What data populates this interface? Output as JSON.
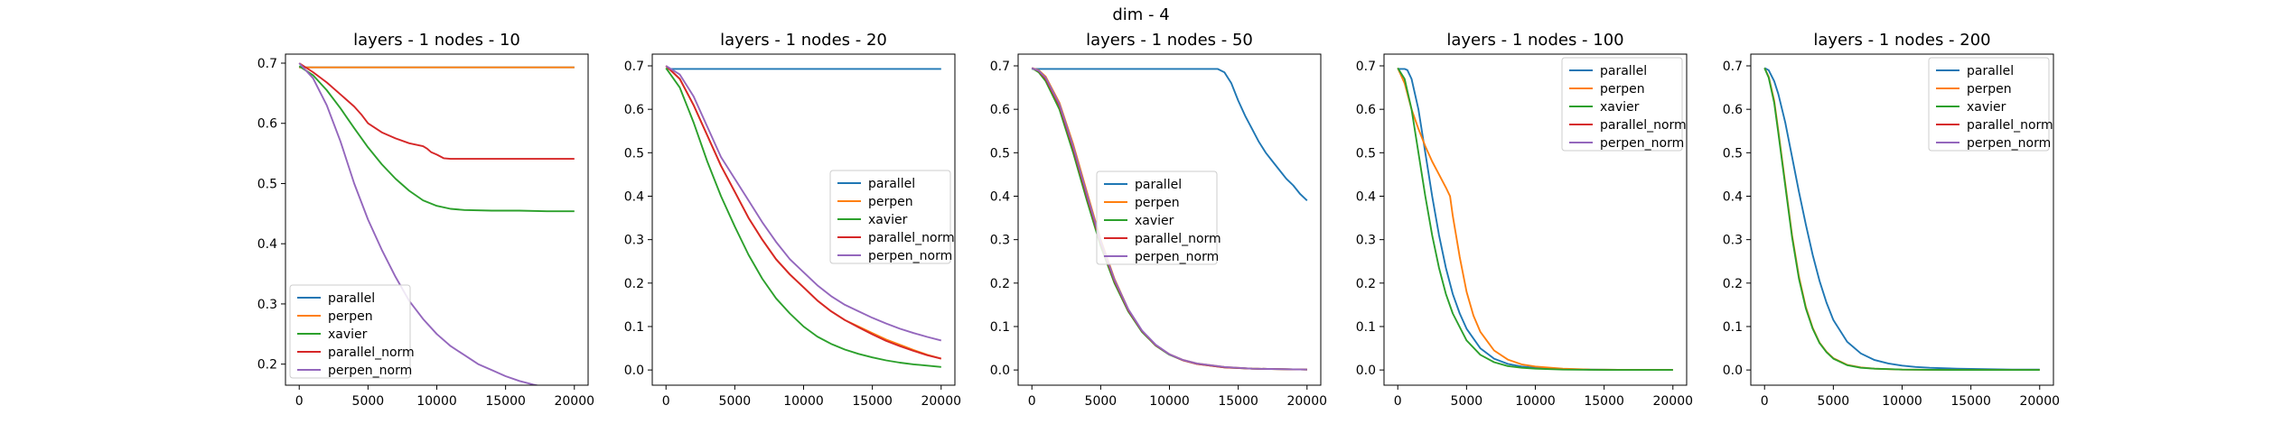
{
  "figure_title": "dim - 4",
  "colors": {
    "parallel": "#1f77b4",
    "perpen": "#ff7f0e",
    "xavier": "#2ca02c",
    "parallel_norm": "#d62728",
    "perpen_norm": "#9467bd"
  },
  "chart_data": [
    {
      "type": "line",
      "title": "layers - 1 nodes - 10",
      "xlabel": "",
      "ylabel": "",
      "xlim": [
        -1000,
        21000
      ],
      "ylim": [
        0.165,
        0.715
      ],
      "xticks": [
        0,
        5000,
        10000,
        15000,
        20000
      ],
      "yticks": [
        0.2,
        0.3,
        0.4,
        0.5,
        0.6,
        0.7
      ],
      "legend_position": "lower-left",
      "grid": false,
      "series": [
        {
          "name": "parallel",
          "x": [
            0,
            20000
          ],
          "y": [
            0.693,
            0.693
          ]
        },
        {
          "name": "perpen",
          "x": [
            0,
            20000
          ],
          "y": [
            0.693,
            0.693
          ]
        },
        {
          "name": "xavier",
          "x": [
            0,
            1000,
            2000,
            3000,
            4000,
            5000,
            6000,
            7000,
            8000,
            9000,
            10000,
            11000,
            12000,
            14000,
            16000,
            18000,
            20000
          ],
          "y": [
            0.695,
            0.68,
            0.655,
            0.625,
            0.592,
            0.56,
            0.532,
            0.508,
            0.488,
            0.472,
            0.463,
            0.458,
            0.456,
            0.455,
            0.455,
            0.454,
            0.454
          ]
        },
        {
          "name": "parallel_norm",
          "x": [
            0,
            1000,
            2000,
            3000,
            4000,
            4500,
            5000,
            6000,
            7000,
            8000,
            9000,
            9300,
            9600,
            10000,
            10500,
            11000,
            12000,
            14000,
            16000,
            18000,
            20000
          ],
          "y": [
            0.7,
            0.685,
            0.668,
            0.648,
            0.628,
            0.615,
            0.6,
            0.585,
            0.575,
            0.567,
            0.562,
            0.558,
            0.552,
            0.548,
            0.542,
            0.541,
            0.541,
            0.541,
            0.541,
            0.541,
            0.541
          ]
        },
        {
          "name": "perpen_norm",
          "x": [
            0,
            1000,
            2000,
            3000,
            4000,
            5000,
            6000,
            7000,
            8000,
            9000,
            10000,
            11000,
            12000,
            13000,
            14000,
            15000,
            16000,
            17000,
            18000,
            19000,
            20000
          ],
          "y": [
            0.7,
            0.675,
            0.63,
            0.57,
            0.5,
            0.44,
            0.39,
            0.345,
            0.305,
            0.275,
            0.25,
            0.23,
            0.215,
            0.2,
            0.19,
            0.18,
            0.172,
            0.166,
            0.161,
            0.156,
            0.15
          ]
        }
      ]
    },
    {
      "type": "line",
      "title": "layers - 1 nodes - 20",
      "xlabel": "",
      "ylabel": "",
      "xlim": [
        -1000,
        21000
      ],
      "ylim": [
        -0.035,
        0.727
      ],
      "xticks": [
        0,
        5000,
        10000,
        15000,
        20000
      ],
      "yticks": [
        0.0,
        0.1,
        0.2,
        0.3,
        0.4,
        0.5,
        0.6,
        0.7
      ],
      "legend_position": "center-right",
      "grid": false,
      "series": [
        {
          "name": "parallel",
          "x": [
            0,
            20000
          ],
          "y": [
            0.693,
            0.693
          ]
        },
        {
          "name": "perpen",
          "x": [
            0,
            1000,
            2000,
            3000,
            4000,
            5000,
            6000,
            7000,
            8000,
            9000,
            10000,
            11000,
            12000,
            13000,
            14000,
            15000,
            16000,
            17000,
            18000,
            19000,
            20000
          ],
          "y": [
            0.7,
            0.67,
            0.61,
            0.54,
            0.47,
            0.41,
            0.35,
            0.3,
            0.255,
            0.22,
            0.19,
            0.16,
            0.135,
            0.115,
            0.1,
            0.085,
            0.07,
            0.058,
            0.046,
            0.035,
            0.026
          ]
        },
        {
          "name": "xavier",
          "x": [
            0,
            1000,
            2000,
            3000,
            4000,
            5000,
            6000,
            7000,
            8000,
            9000,
            10000,
            11000,
            12000,
            13000,
            14000,
            15000,
            16000,
            17000,
            18000,
            19000,
            20000
          ],
          "y": [
            0.695,
            0.65,
            0.57,
            0.48,
            0.4,
            0.33,
            0.265,
            0.21,
            0.165,
            0.13,
            0.1,
            0.077,
            0.06,
            0.047,
            0.037,
            0.029,
            0.022,
            0.017,
            0.013,
            0.01,
            0.007
          ]
        },
        {
          "name": "parallel_norm",
          "x": [
            0,
            1000,
            2000,
            3000,
            4000,
            5000,
            6000,
            7000,
            8000,
            9000,
            10000,
            11000,
            12000,
            13000,
            14000,
            15000,
            16000,
            17000,
            18000,
            19000,
            20000
          ],
          "y": [
            0.7,
            0.67,
            0.61,
            0.54,
            0.47,
            0.41,
            0.35,
            0.3,
            0.255,
            0.22,
            0.19,
            0.16,
            0.135,
            0.115,
            0.098,
            0.082,
            0.067,
            0.055,
            0.044,
            0.034,
            0.026
          ]
        },
        {
          "name": "perpen_norm",
          "x": [
            0,
            1000,
            2000,
            3000,
            4000,
            5000,
            6000,
            7000,
            8000,
            9000,
            10000,
            11000,
            12000,
            13000,
            14000,
            15000,
            16000,
            17000,
            18000,
            19000,
            20000
          ],
          "y": [
            0.7,
            0.68,
            0.63,
            0.56,
            0.49,
            0.44,
            0.39,
            0.34,
            0.295,
            0.255,
            0.225,
            0.195,
            0.17,
            0.15,
            0.135,
            0.12,
            0.107,
            0.095,
            0.085,
            0.076,
            0.068
          ]
        }
      ]
    },
    {
      "type": "line",
      "title": "layers - 1 nodes - 50",
      "xlabel": "",
      "ylabel": "",
      "xlim": [
        -1000,
        21000
      ],
      "ylim": [
        -0.035,
        0.727
      ],
      "xticks": [
        0,
        5000,
        10000,
        15000,
        20000
      ],
      "yticks": [
        0.0,
        0.1,
        0.2,
        0.3,
        0.4,
        0.5,
        0.6,
        0.7
      ],
      "legend_position": "center",
      "grid": false,
      "series": [
        {
          "name": "parallel",
          "x": [
            0,
            13500,
            14000,
            14500,
            15000,
            15500,
            16000,
            16500,
            17000,
            17500,
            18000,
            18500,
            19000,
            19500,
            20000
          ],
          "y": [
            0.693,
            0.693,
            0.685,
            0.66,
            0.62,
            0.585,
            0.555,
            0.525,
            0.5,
            0.48,
            0.46,
            0.44,
            0.425,
            0.405,
            0.39
          ]
        },
        {
          "name": "perpen",
          "x": [
            0,
            500,
            1000,
            2000,
            3000,
            4000,
            5000,
            6000,
            7000,
            8000,
            9000,
            10000,
            11000,
            12000,
            14000,
            16000,
            18000,
            20000
          ],
          "y": [
            0.695,
            0.69,
            0.675,
            0.615,
            0.52,
            0.41,
            0.3,
            0.21,
            0.14,
            0.09,
            0.057,
            0.036,
            0.023,
            0.015,
            0.007,
            0.003,
            0.002,
            0.001
          ]
        },
        {
          "name": "xavier",
          "x": [
            0,
            500,
            1000,
            2000,
            3000,
            4000,
            5000,
            6000,
            7000,
            8000,
            9000,
            10000,
            11000,
            12000,
            14000,
            16000,
            18000,
            20000
          ],
          "y": [
            0.695,
            0.685,
            0.665,
            0.6,
            0.5,
            0.39,
            0.285,
            0.2,
            0.135,
            0.088,
            0.056,
            0.035,
            0.022,
            0.014,
            0.006,
            0.003,
            0.002,
            0.001
          ]
        },
        {
          "name": "parallel_norm",
          "x": [
            0,
            500,
            1000,
            2000,
            3000,
            4000,
            5000,
            6000,
            7000,
            8000,
            9000,
            10000,
            11000,
            12000,
            14000,
            16000,
            18000,
            20000
          ],
          "y": [
            0.695,
            0.688,
            0.67,
            0.608,
            0.51,
            0.4,
            0.292,
            0.205,
            0.138,
            0.09,
            0.057,
            0.036,
            0.022,
            0.014,
            0.006,
            0.003,
            0.002,
            0.001
          ]
        },
        {
          "name": "perpen_norm",
          "x": [
            0,
            500,
            1000,
            2000,
            3000,
            4000,
            5000,
            6000,
            7000,
            8000,
            9000,
            10000,
            11000,
            12000,
            14000,
            16000,
            18000,
            20000
          ],
          "y": [
            0.695,
            0.689,
            0.673,
            0.612,
            0.515,
            0.405,
            0.296,
            0.208,
            0.14,
            0.091,
            0.058,
            0.036,
            0.023,
            0.015,
            0.007,
            0.003,
            0.002,
            0.001
          ]
        }
      ]
    },
    {
      "type": "line",
      "title": "layers - 1 nodes - 100",
      "xlabel": "",
      "ylabel": "",
      "xlim": [
        -1000,
        21000
      ],
      "ylim": [
        -0.035,
        0.727
      ],
      "xticks": [
        0,
        5000,
        10000,
        15000,
        20000
      ],
      "yticks": [
        0.0,
        0.1,
        0.2,
        0.3,
        0.4,
        0.5,
        0.6,
        0.7
      ],
      "legend_position": "upper-right",
      "grid": false,
      "series": [
        {
          "name": "parallel",
          "x": [
            0,
            500,
            700,
            1000,
            1500,
            2000,
            2500,
            3000,
            3500,
            4000,
            4500,
            5000,
            6000,
            7000,
            8000,
            9000,
            10000,
            12000,
            14000,
            16000,
            20000
          ],
          "y": [
            0.693,
            0.693,
            0.69,
            0.67,
            0.6,
            0.5,
            0.4,
            0.31,
            0.235,
            0.175,
            0.13,
            0.095,
            0.05,
            0.026,
            0.014,
            0.008,
            0.005,
            0.002,
            0.001,
            0.0005,
            0.0
          ]
        },
        {
          "name": "perpen",
          "x": [
            0,
            500,
            1000,
            1500,
            2000,
            2500,
            3000,
            3500,
            3800,
            4000,
            4500,
            5000,
            5500,
            6000,
            7000,
            8000,
            9000,
            10000,
            12000,
            14000,
            16000,
            20000
          ],
          "y": [
            0.695,
            0.66,
            0.6,
            0.555,
            0.515,
            0.48,
            0.45,
            0.42,
            0.4,
            0.355,
            0.26,
            0.18,
            0.125,
            0.088,
            0.045,
            0.024,
            0.013,
            0.008,
            0.003,
            0.001,
            0.0005,
            0.0
          ]
        },
        {
          "name": "xavier",
          "x": [
            0,
            500,
            1000,
            1500,
            2000,
            2500,
            3000,
            3500,
            4000,
            5000,
            6000,
            7000,
            8000,
            9000,
            10000,
            12000,
            14000,
            16000,
            20000
          ],
          "y": [
            0.695,
            0.67,
            0.6,
            0.5,
            0.4,
            0.31,
            0.235,
            0.175,
            0.13,
            0.068,
            0.035,
            0.018,
            0.009,
            0.005,
            0.003,
            0.001,
            0.0005,
            0.0,
            0.0
          ]
        },
        {
          "name": "parallel_norm",
          "x": [
            0,
            20000
          ],
          "y": [
            null,
            null
          ]
        },
        {
          "name": "perpen_norm",
          "x": [
            0,
            20000
          ],
          "y": [
            null,
            null
          ]
        }
      ]
    },
    {
      "type": "line",
      "title": "layers - 1 nodes - 200",
      "xlabel": "",
      "ylabel": "",
      "xlim": [
        -1000,
        21000
      ],
      "ylim": [
        -0.035,
        0.727
      ],
      "xticks": [
        0,
        5000,
        10000,
        15000,
        20000
      ],
      "yticks": [
        0.0,
        0.1,
        0.2,
        0.3,
        0.4,
        0.5,
        0.6,
        0.7
      ],
      "legend_position": "upper-right",
      "grid": false,
      "series": [
        {
          "name": "parallel",
          "x": [
            0,
            300,
            700,
            1000,
            1500,
            2000,
            2500,
            3000,
            3500,
            4000,
            4500,
            5000,
            6000,
            7000,
            8000,
            9000,
            10000,
            11000,
            12000,
            14000,
            16000,
            18000,
            20000
          ],
          "y": [
            0.695,
            0.69,
            0.665,
            0.635,
            0.57,
            0.49,
            0.41,
            0.335,
            0.265,
            0.205,
            0.155,
            0.115,
            0.065,
            0.038,
            0.023,
            0.015,
            0.01,
            0.007,
            0.005,
            0.003,
            0.002,
            0.001,
            0.001
          ]
        },
        {
          "name": "perpen",
          "x": [
            0,
            300,
            700,
            1000,
            1500,
            2000,
            2500,
            3000,
            3500,
            4000,
            4500,
            5000,
            6000,
            7000,
            8000,
            9000,
            10000,
            12000,
            14000,
            16000,
            20000
          ],
          "y": [
            0.695,
            0.675,
            0.62,
            0.55,
            0.43,
            0.31,
            0.215,
            0.145,
            0.097,
            0.063,
            0.042,
            0.027,
            0.012,
            0.006,
            0.003,
            0.002,
            0.001,
            0.0005,
            0.0,
            0.0,
            0.0
          ]
        },
        {
          "name": "xavier",
          "x": [
            0,
            300,
            700,
            1000,
            1500,
            2000,
            2500,
            3000,
            3500,
            4000,
            4500,
            5000,
            6000,
            7000,
            8000,
            9000,
            10000,
            12000,
            14000,
            16000,
            20000
          ],
          "y": [
            0.695,
            0.673,
            0.615,
            0.545,
            0.425,
            0.305,
            0.21,
            0.142,
            0.095,
            0.062,
            0.041,
            0.026,
            0.011,
            0.005,
            0.003,
            0.002,
            0.001,
            0.0005,
            0.0,
            0.0,
            0.0
          ]
        },
        {
          "name": "parallel_norm",
          "x": [
            0,
            20000
          ],
          "y": [
            null,
            null
          ]
        },
        {
          "name": "perpen_norm",
          "x": [
            0,
            20000
          ],
          "y": [
            null,
            null
          ]
        }
      ]
    }
  ]
}
